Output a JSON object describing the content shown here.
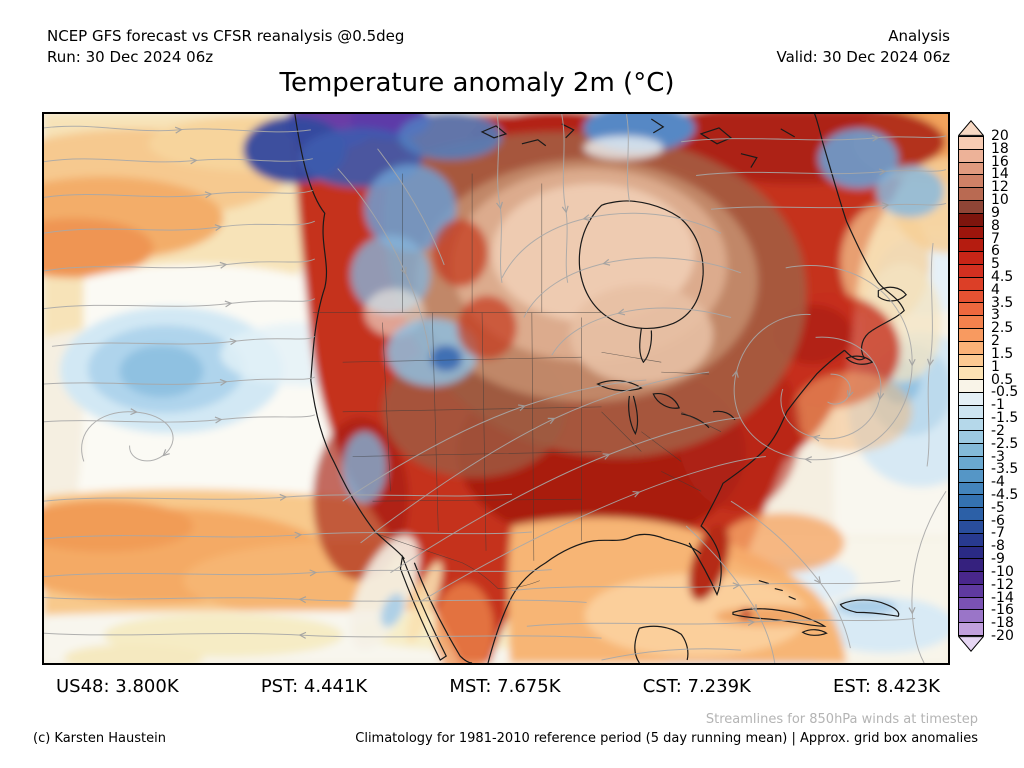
{
  "header": {
    "left_line1": "NCEP GFS forecast vs CFSR reanalysis @0.5deg",
    "left_line2": "Run: 30 Dec 2024 06z",
    "right_line1": "Analysis",
    "right_line2": "Valid: 30 Dec 2024 06z"
  },
  "title": "Temperature anomaly 2m (°C)",
  "footer": {
    "stats": [
      "US48: 3.800K",
      "PST: 4.441K",
      "MST: 7.675K",
      "CST: 7.239K",
      "EST: 8.423K"
    ],
    "streamlines_note": "Streamlines for 850hPa winds at timestep",
    "credit": "(c) Karsten Haustein",
    "climatology_note": "Climatology for 1981-2010 reference period (5 day running mean) | Approx. grid box anomalies"
  },
  "chart_data": {
    "type": "heatmap",
    "title": "Temperature anomaly 2m (°C)",
    "units": "°C",
    "map_extent": "North America and adjacent Pacific/Atlantic",
    "colorbar": {
      "tick_labels": [
        "20",
        "18",
        "16",
        "14",
        "12",
        "10",
        "9",
        "8",
        "7",
        "6",
        "5",
        "4.5",
        "4",
        "3.5",
        "3",
        "2.5",
        "2",
        "1.5",
        "1",
        "0.5",
        "-0.5",
        "-1",
        "-1.5",
        "-2",
        "-2.5",
        "-3",
        "-3.5",
        "-4",
        "-4.5",
        "-5",
        "-6",
        "-7",
        "-8",
        "-9",
        "-10",
        "-12",
        "-14",
        "-16",
        "-18",
        "-20"
      ],
      "cell_colors": [
        "#f7cbb2",
        "#edb298",
        "#e09a7e",
        "#cf8166",
        "#b96a52",
        "#8f4536",
        "#7d150d",
        "#9d150c",
        "#b51c10",
        "#c72517",
        "#d23020",
        "#dc3f27",
        "#e55232",
        "#ed683e",
        "#f3814d",
        "#f89a60",
        "#fbb277",
        "#fdca92",
        "#fde3b4",
        "#f9f4e8",
        "#e4eff6",
        "#cde4f1",
        "#b5d8ea",
        "#9ccae2",
        "#83bad9",
        "#6aa8d0",
        "#5596c6",
        "#4384bc",
        "#3472b1",
        "#2c60a7",
        "#294d9c",
        "#283a90",
        "#2a2a85",
        "#35217e",
        "#49278c",
        "#5f3a9f",
        "#7a52b3",
        "#9a75c8",
        "#c1a0dd"
      ],
      "over_color": "#f8d9c4",
      "under_color": "#e6d6f4"
    },
    "regional_mean_anomaly_K": [
      {
        "region": "US48",
        "value": 3.8
      },
      {
        "region": "PST",
        "value": 4.441
      },
      {
        "region": "MST",
        "value": 7.675
      },
      {
        "region": "CST",
        "value": 7.239
      },
      {
        "region": "EST",
        "value": 8.423
      }
    ],
    "notable_features": [
      "Strongest warm anomaly (+14 to +20°C, tan/pink shading) centered on Hudson Bay and central Canada",
      "Widespread +6 to +10°C (dark red) anomalies over central, southern and eastern US",
      "Cold anomalies (-6 to -14°C, blue/purple) along Arctic coast at top of map and patches over British Columbia",
      "Weak cold anomaly (-1 to -3°C) blob over NE Pacific and near-neutral western Atlantic/Caribbean",
      "Warm +1 to +4°C (orange) bands over subtropical Pacific, Gulf of Mexico and NW Atlantic",
      "Gray 850hPa wind streamlines with anticyclonic gyre over western Atlantic and zonal Pacific flow"
    ]
  }
}
